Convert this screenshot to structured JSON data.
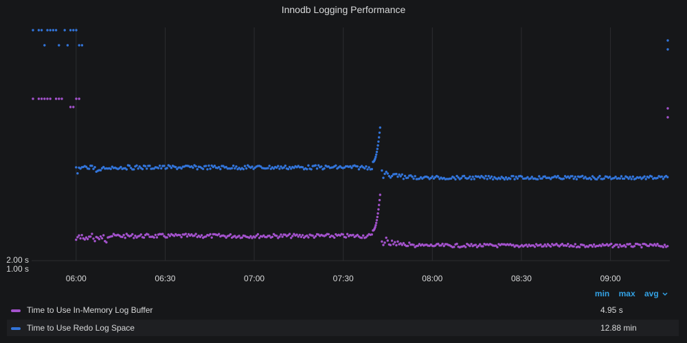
{
  "panel": {
    "title": "Innodb Logging Performance"
  },
  "legend": {
    "headers": [
      "min",
      "max",
      "avg"
    ],
    "sort_icon": "chevron-down-icon",
    "rows": [
      {
        "name": "Time to Use In-Memory Log Buffer",
        "value": "4.95 s",
        "color": "#a352cc"
      },
      {
        "name": "Time to Use Redo Log Space",
        "value": "12.88 min",
        "color": "#3274d9"
      }
    ]
  },
  "colors": {
    "background": "#161719",
    "grid": "#2c2d30",
    "text": "#d8d9da",
    "purple": "#a352cc",
    "blue": "#3274d9",
    "link": "#33a2e5"
  },
  "chart_data": {
    "type": "scatter",
    "title": "Innodb Logging Performance",
    "xlabel": "",
    "ylabel": "",
    "x_ticks": [
      "06:00",
      "06:30",
      "07:00",
      "07:30",
      "08:00",
      "08:30",
      "09:00"
    ],
    "x_range": [
      "05:45",
      "09:20"
    ],
    "y_ticks": [
      "1.00 s",
      "2.00 s"
    ],
    "y_scale": "log",
    "grid": "vertical",
    "legend_placement": "bottom",
    "series": [
      {
        "name": "Time to Use In-Memory Log Buffer",
        "color": "#a352cc",
        "segments": [
          {
            "start": "05:45",
            "end": "06:00",
            "level": "high",
            "pattern": "sparse"
          },
          {
            "start": "06:00",
            "end": "07:40",
            "level": "steady",
            "trend": "flat"
          },
          {
            "start": "07:40",
            "end": "07:43",
            "level": "rising_spike"
          },
          {
            "start": "07:43",
            "end": "09:20",
            "level": "steady_lower"
          }
        ]
      },
      {
        "name": "Time to Use Redo Log Space",
        "color": "#3274d9",
        "segments": [
          {
            "start": "05:45",
            "end": "06:00",
            "level": "high",
            "pattern": "sparse"
          },
          {
            "start": "06:00",
            "end": "07:40",
            "level": "steady",
            "trend": "flat"
          },
          {
            "start": "07:40",
            "end": "07:43",
            "level": "rising_spike"
          },
          {
            "start": "07:43",
            "end": "09:20",
            "level": "steady_lower"
          }
        ]
      }
    ]
  }
}
